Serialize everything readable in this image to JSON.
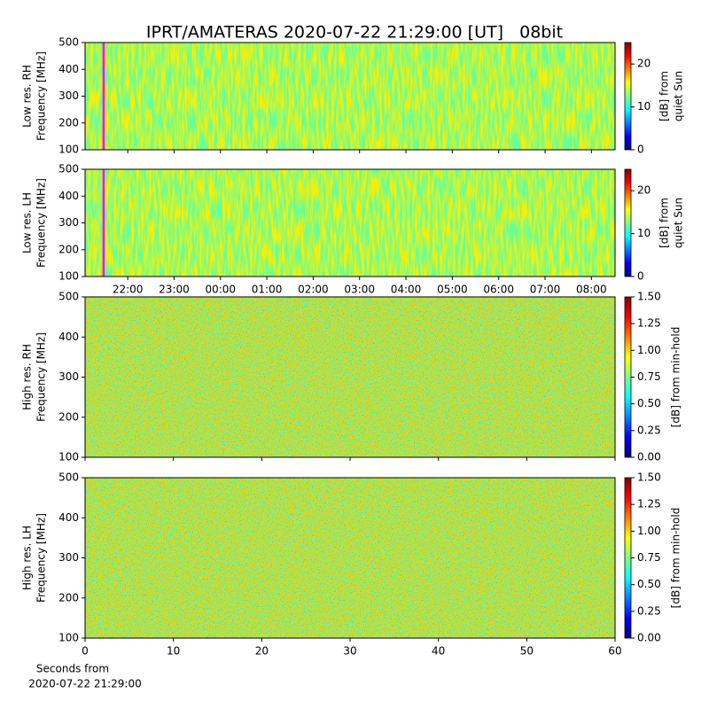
{
  "title": "IPRT/AMATERAS 2020-07-22 21:29:00 [UT]   08bit",
  "xlabel": [
    "Seconds from",
    "2020-07-22 21:29:00"
  ],
  "colormap": [
    "#00007f",
    "#0000ff",
    "#00ffff",
    "#ffff00",
    "#ff0000",
    "#7f0000"
  ],
  "chart_data": [
    {
      "type": "heatmap",
      "ylabel": [
        "Low res. RH",
        "Frequency [MHz]"
      ],
      "ylim": [
        100,
        500
      ],
      "yticks": [
        100,
        200,
        300,
        400,
        500
      ],
      "xlim": [
        21.08,
        32.51
      ],
      "marker": {
        "x": 21.48,
        "color": "#ff00ff"
      },
      "colorbar": {
        "label": [
          "[dB] from",
          "quiet Sun"
        ],
        "lim": [
          0,
          25
        ],
        "ticks": [
          0,
          10,
          20
        ]
      }
    },
    {
      "type": "heatmap",
      "ylabel": [
        "Low res. LH",
        "Frequency [MHz]"
      ],
      "ylim": [
        100,
        500
      ],
      "yticks": [
        100,
        200,
        300,
        400,
        500
      ],
      "xlim": [
        21.08,
        32.51
      ],
      "xticks": [
        {
          "value": 22,
          "label": "22:00"
        },
        {
          "value": 23,
          "label": "23:00"
        },
        {
          "value": 24,
          "label": "00:00"
        },
        {
          "value": 25,
          "label": "01:00"
        },
        {
          "value": 26,
          "label": "02:00"
        },
        {
          "value": 27,
          "label": "03:00"
        },
        {
          "value": 28,
          "label": "04:00"
        },
        {
          "value": 29,
          "label": "05:00"
        },
        {
          "value": 30,
          "label": "06:00"
        },
        {
          "value": 31,
          "label": "07:00"
        },
        {
          "value": 32,
          "label": "08:00"
        }
      ],
      "marker": {
        "x": 21.48,
        "color": "#ff00ff"
      },
      "colorbar": {
        "label": [
          "[dB] from",
          "quiet Sun"
        ],
        "lim": [
          0,
          25
        ],
        "ticks": [
          0,
          10,
          20
        ]
      }
    },
    {
      "type": "heatmap",
      "ylabel": [
        "High res. RH",
        "Frequency [MHz]"
      ],
      "ylim": [
        100,
        500
      ],
      "yticks": [
        100,
        200,
        300,
        400,
        500
      ],
      "xlim": [
        0,
        60
      ],
      "colorbar": {
        "label": [
          "[dB] from min-hold"
        ],
        "lim": [
          0,
          1.5
        ],
        "ticks": [
          {
            "value": 0,
            "label": "0.00"
          },
          {
            "value": 0.25,
            "label": "0.25"
          },
          {
            "value": 0.5,
            "label": "0.50"
          },
          {
            "value": 0.75,
            "label": "0.75"
          },
          {
            "value": 1,
            "label": "1.00"
          },
          {
            "value": 1.25,
            "label": "1.25"
          },
          {
            "value": 1.5,
            "label": "1.50"
          }
        ]
      }
    },
    {
      "type": "heatmap",
      "ylabel": [
        "High res. LH",
        "Frequency [MHz]"
      ],
      "ylim": [
        100,
        500
      ],
      "yticks": [
        100,
        200,
        300,
        400,
        500
      ],
      "xlim": [
        0,
        60
      ],
      "xticks": [
        0,
        10,
        20,
        30,
        40,
        50,
        60
      ],
      "colorbar": {
        "label": [
          "[dB] from min-hold"
        ],
        "lim": [
          0,
          1.5
        ],
        "ticks": [
          {
            "value": 0,
            "label": "0.00"
          },
          {
            "value": 0.25,
            "label": "0.25"
          },
          {
            "value": 0.5,
            "label": "0.50"
          },
          {
            "value": 0.75,
            "label": "0.75"
          },
          {
            "value": 1,
            "label": "1.00"
          },
          {
            "value": 1.25,
            "label": "1.25"
          },
          {
            "value": 1.5,
            "label": "1.50"
          }
        ]
      }
    }
  ]
}
